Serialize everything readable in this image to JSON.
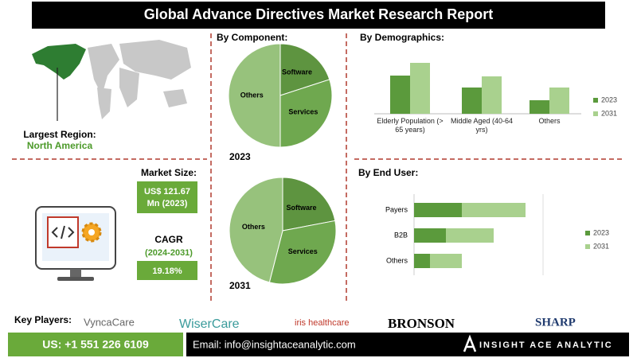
{
  "title": "Global Advance Directives Market Research Report",
  "region": {
    "label": "Largest Region:",
    "value": "North America"
  },
  "market_size": {
    "label": "Market Size:",
    "value_lines": [
      "US$ 121.67",
      "Mn (2023)"
    ]
  },
  "cagr": {
    "label": "CAGR",
    "period": "(2024-2031)",
    "value": "19.18%"
  },
  "sections": {
    "component": "By Component:",
    "demographics": "By Demographics:",
    "end_user": "By End User:"
  },
  "key_players": {
    "label": "Key Players:",
    "names": [
      "VyncaCare",
      "WiserCare",
      "iris healthcare",
      "BRONSON",
      "SHARP"
    ]
  },
  "footer": {
    "phone": "US: +1 551 226 6109",
    "email": "Email: info@insightaceanalytic.com",
    "brand": "INSIGHT ACE ANALYTIC"
  },
  "chart_data": [
    {
      "type": "pie",
      "title": "2023",
      "categories": [
        "Software",
        "Services",
        "Others"
      ],
      "values": [
        20,
        30,
        50
      ],
      "colors": [
        "#5e9440",
        "#6fa84f",
        "#97c27c"
      ]
    },
    {
      "type": "pie",
      "title": "2031",
      "categories": [
        "Software",
        "Services",
        "Others"
      ],
      "values": [
        22,
        32,
        46
      ],
      "colors": [
        "#5e9440",
        "#6fa84f",
        "#97c27c"
      ]
    },
    {
      "type": "bar",
      "orientation": "vertical",
      "categories": [
        "Elderly Population (> 65 years)",
        "Middle Aged (40-64 yrs)",
        "Others"
      ],
      "series": [
        {
          "name": "2023",
          "color": "#5b9a3c",
          "values": [
            48,
            33,
            17
          ]
        },
        {
          "name": "2031",
          "color": "#a9d18e",
          "values": [
            64,
            47,
            33
          ]
        }
      ]
    },
    {
      "type": "bar",
      "orientation": "horizontal",
      "stacked": true,
      "categories": [
        "Payers",
        "B2B",
        "Others"
      ],
      "series": [
        {
          "name": "2023",
          "color": "#5b9a3c",
          "values": [
            60,
            40,
            20
          ]
        },
        {
          "name": "2031",
          "color": "#a9d18e",
          "values": [
            80,
            60,
            40
          ]
        }
      ]
    }
  ]
}
